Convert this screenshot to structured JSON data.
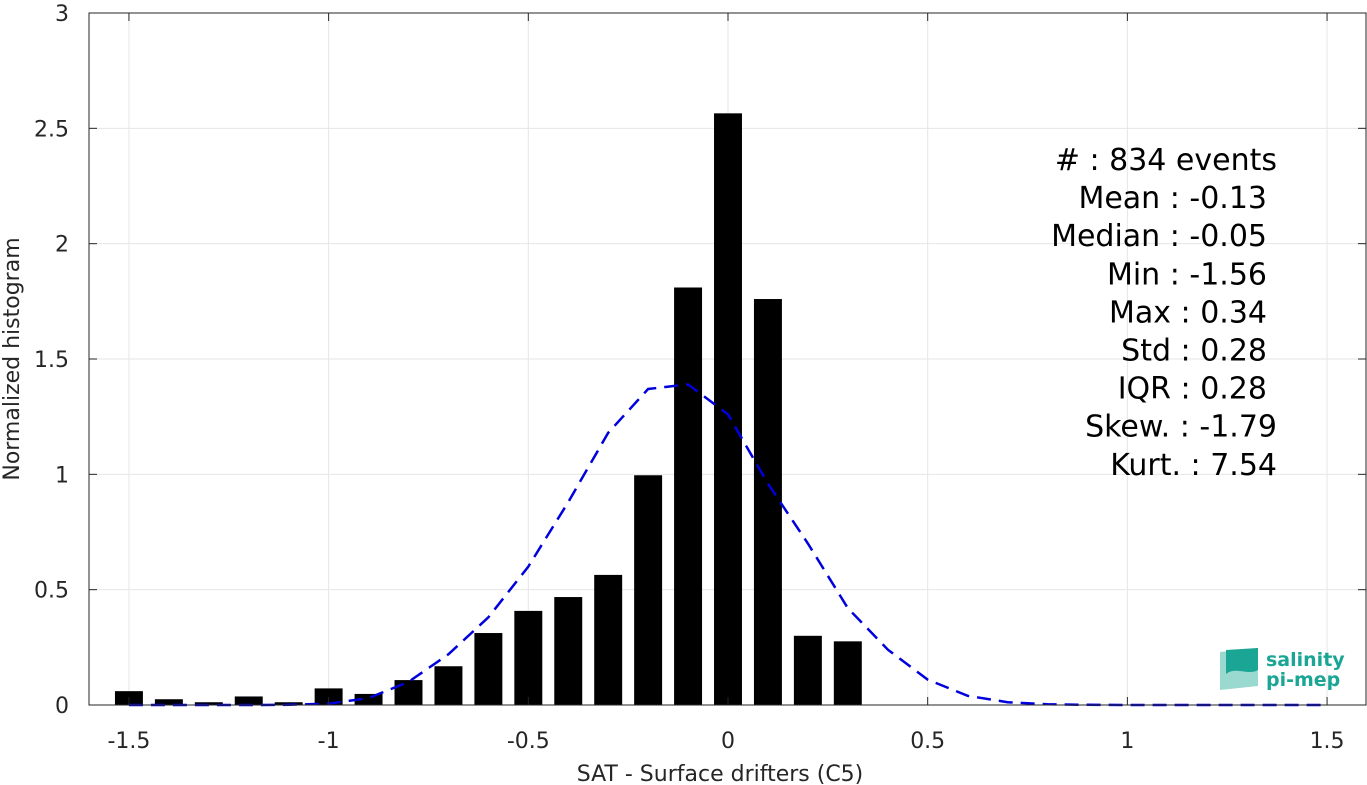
{
  "chart_data": {
    "type": "bar",
    "xlabel": "SAT - Surface drifters (C5)",
    "ylabel": "Normalized histogram",
    "xlim": [
      -1.6,
      1.6
    ],
    "ylim": [
      0,
      3
    ],
    "xticks": [
      -1.5,
      -1,
      -0.5,
      0,
      0.5,
      1,
      1.5
    ],
    "xtick_labels": [
      "-1.5",
      "-1",
      "-0.5",
      "0",
      "0.5",
      "1",
      "1.5"
    ],
    "yticks": [
      0,
      0.5,
      1,
      1.5,
      2,
      2.5,
      3
    ],
    "ytick_labels": [
      "0",
      "0.5",
      "1",
      "1.5",
      "2",
      "2.5",
      "3"
    ],
    "grid": true,
    "bar_width": 0.07,
    "bars": {
      "x": [
        -1.5,
        -1.4,
        -1.3,
        -1.2,
        -1.1,
        -1.0,
        -0.9,
        -0.8,
        -0.7,
        -0.6,
        -0.5,
        -0.4,
        -0.3,
        -0.2,
        -0.1,
        0.0,
        0.1,
        0.2,
        0.3
      ],
      "values": [
        0.06,
        0.025,
        0.012,
        0.037,
        0.012,
        0.072,
        0.048,
        0.108,
        0.168,
        0.312,
        0.408,
        0.468,
        0.564,
        0.996,
        1.81,
        2.565,
        1.76,
        0.3,
        0.276
      ],
      "color": "#000000"
    },
    "fit_curve": {
      "style": "dashed",
      "color": "#0000dd",
      "x": [
        -1.5,
        -1.4,
        -1.3,
        -1.2,
        -1.1,
        -1.0,
        -0.9,
        -0.8,
        -0.7,
        -0.6,
        -0.5,
        -0.4,
        -0.3,
        -0.2,
        -0.1,
        0.0,
        0.1,
        0.2,
        0.3,
        0.4,
        0.5,
        0.6,
        0.7,
        0.8,
        0.9,
        1.0,
        1.1,
        1.2,
        1.3,
        1.4,
        1.5
      ],
      "y": [
        0.0,
        0.0,
        0.0,
        0.0,
        0.001,
        0.006,
        0.03,
        0.1,
        0.22,
        0.38,
        0.6,
        0.88,
        1.18,
        1.37,
        1.39,
        1.26,
        0.96,
        0.7,
        0.42,
        0.24,
        0.11,
        0.04,
        0.012,
        0.003,
        0.001,
        0.0,
        0.0,
        0.0,
        0.0,
        0.0,
        0.0
      ]
    },
    "annotations": [
      "#  : 834 events",
      "Mean : -0.13",
      "Median : -0.05",
      "Min : -1.56",
      "Max : 0.34",
      "Std : 0.28",
      "IQR : 0.28",
      "Skew. : -1.79",
      "Kurt. : 7.54"
    ],
    "logo": {
      "line1": "salinity",
      "line2": "pi-mep",
      "color": "#1aa595"
    }
  }
}
